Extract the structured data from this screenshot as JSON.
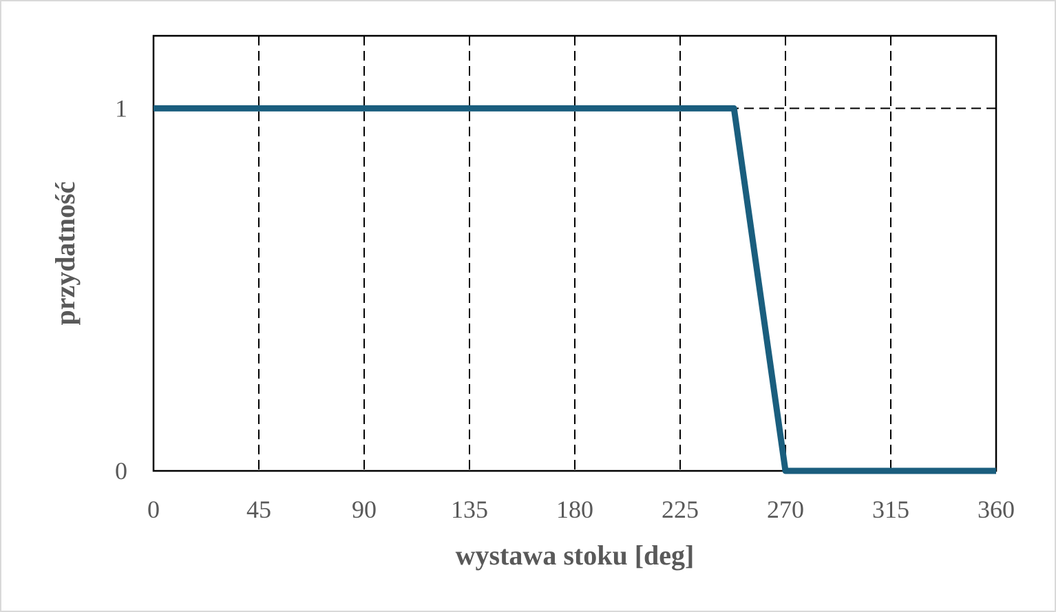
{
  "chart_data": {
    "type": "line",
    "title": "",
    "xlabel": "wystawa stoku [deg]",
    "ylabel": "przydatność",
    "xlim": [
      0,
      360
    ],
    "ylim": [
      0,
      1.2
    ],
    "xticks": [
      "0",
      "45",
      "90",
      "135",
      "180",
      "225",
      "270",
      "315",
      "360"
    ],
    "yticks": [
      "0",
      "1"
    ],
    "grid": {
      "x": true,
      "y": true,
      "style": "dashed"
    },
    "legend": "none",
    "series": [
      {
        "color": "#1a5e7e",
        "points": [
          {
            "x": 0,
            "y": 1
          },
          {
            "x": 248,
            "y": 1
          },
          {
            "x": 270,
            "y": 0
          },
          {
            "x": 360,
            "y": 0
          }
        ]
      }
    ]
  }
}
